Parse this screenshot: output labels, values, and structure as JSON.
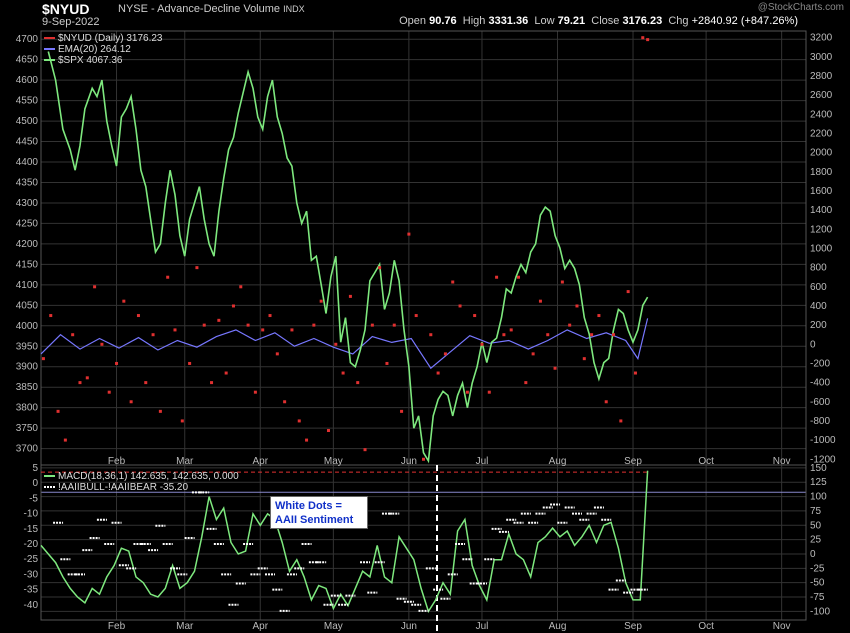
{
  "header": {
    "ticker": "$NYUD",
    "description": "NYSE - Advance-Decline Volume",
    "type": "INDX",
    "date": "9-Sep-2022",
    "open_label": "Open",
    "open": "90.76",
    "high_label": "High",
    "high": "3331.36",
    "low_label": "Low",
    "low": "79.21",
    "close_label": "Close",
    "close": "3176.23",
    "chg_label": "Chg",
    "chg": "+2840.92 (+847.26%)",
    "brand": "@StockCharts.com"
  },
  "colors": {
    "background": "#000000",
    "grid": "#333333",
    "spx": "#7ee87e",
    "ema": "#7777ff",
    "nyud_dots": "#e03030",
    "macd": "#7ee87e",
    "signal": "#e03030",
    "sentiment_dots": "#ffffff",
    "note_text": "#1030c8"
  },
  "note": {
    "line1": "White Dots =",
    "line2": "AAII Sentiment"
  },
  "chart_data": [
    {
      "type": "line",
      "panel": "main",
      "legend": [
        {
          "label": "$NYUD (Daily) 3176.23",
          "color": "#e03030"
        },
        {
          "label": "EMA(20) 264.12",
          "color": "#7777ff"
        },
        {
          "label": "$SPX 4067.36",
          "color": "#7ee87e"
        }
      ],
      "x_ticks": [
        "Feb",
        "Mar",
        "Apr",
        "May",
        "Jun",
        "Jul",
        "Aug",
        "Sep",
        "Oct",
        "Nov"
      ],
      "x_tick_days": [
        31,
        59,
        90,
        120,
        151,
        181,
        212,
        243,
        273,
        304
      ],
      "xlim": [
        0,
        314
      ],
      "left_axis_ticks": [
        3700,
        3750,
        3800,
        3850,
        3900,
        3950,
        4000,
        4050,
        4100,
        4150,
        4200,
        4250,
        4300,
        4350,
        4400,
        4450,
        4500,
        4550,
        4600,
        4650,
        4700
      ],
      "ylim_left": [
        3660,
        4720
      ],
      "right_axis_ticks": [
        -1200,
        -1000,
        -800,
        -600,
        -400,
        -200,
        0,
        200,
        400,
        600,
        800,
        1000,
        1200,
        1400,
        1600,
        1800,
        2000,
        2200,
        2400,
        2600,
        2800,
        3000,
        3200
      ],
      "ylim_right": [
        -1260,
        3270
      ],
      "spx": {
        "name": "$SPX",
        "x": [
          3,
          6,
          9,
          12,
          14,
          16,
          18,
          21,
          23,
          25,
          27,
          29,
          31,
          33,
          35,
          37,
          39,
          41,
          43,
          45,
          47,
          49,
          51,
          53,
          55,
          57,
          59,
          61,
          63,
          65,
          67,
          69,
          71,
          73,
          75,
          77,
          79,
          81,
          83,
          85,
          87,
          89,
          91,
          93,
          95,
          97,
          99,
          101,
          103,
          105,
          107,
          109,
          111,
          113,
          115,
          117,
          119,
          121,
          123,
          125,
          127,
          129,
          131,
          133,
          135,
          137,
          139,
          141,
          143,
          145,
          147,
          149,
          151,
          153,
          155,
          157,
          159,
          161,
          163,
          165,
          167,
          169,
          171,
          173,
          175,
          177,
          179,
          181,
          183,
          185,
          187,
          189,
          191,
          193,
          195,
          197,
          199,
          201,
          203,
          205,
          207,
          209,
          211,
          213,
          215,
          217,
          219,
          221,
          223,
          225,
          227,
          229,
          231,
          233,
          235,
          237,
          239,
          241,
          243,
          245,
          247,
          249
        ],
        "y": [
          4670,
          4600,
          4480,
          4430,
          4380,
          4440,
          4530,
          4580,
          4560,
          4600,
          4500,
          4440,
          4390,
          4510,
          4530,
          4560,
          4480,
          4380,
          4340,
          4260,
          4180,
          4200,
          4300,
          4380,
          4320,
          4220,
          4170,
          4260,
          4300,
          4340,
          4260,
          4200,
          4170,
          4280,
          4360,
          4430,
          4460,
          4520,
          4570,
          4620,
          4580,
          4510,
          4480,
          4560,
          4600,
          4510,
          4470,
          4410,
          4390,
          4300,
          4250,
          4280,
          4160,
          4170,
          4100,
          4030,
          4120,
          4170,
          3960,
          4020,
          3910,
          3900,
          3940,
          3990,
          4110,
          4130,
          4150,
          4040,
          4080,
          4160,
          4110,
          3990,
          3900,
          3750,
          3780,
          3690,
          3670,
          3780,
          3820,
          3840,
          3830,
          3780,
          3830,
          3860,
          3800,
          3860,
          3900,
          3960,
          3910,
          3960,
          3970,
          4020,
          4090,
          4080,
          4120,
          4150,
          4130,
          4180,
          4200,
          4270,
          4290,
          4280,
          4220,
          4190,
          4140,
          4160,
          4140,
          4100,
          4020,
          3980,
          3910,
          3870,
          3910,
          3920,
          3990,
          4040,
          4030,
          3990,
          3960,
          3990,
          4050,
          4070
        ]
      },
      "ema": {
        "name": "EMA(20)",
        "x": [
          0,
          8,
          16,
          24,
          32,
          40,
          48,
          56,
          64,
          72,
          80,
          88,
          96,
          104,
          112,
          120,
          128,
          136,
          144,
          152,
          160,
          168,
          176,
          184,
          192,
          200,
          208,
          216,
          224,
          232,
          240,
          245,
          249
        ],
        "y": [
          -100,
          100,
          -50,
          60,
          -40,
          70,
          -60,
          40,
          -30,
          80,
          150,
          40,
          120,
          -20,
          60,
          -30,
          -100,
          80,
          20,
          60,
          -250,
          -80,
          90,
          10,
          40,
          -50,
          40,
          150,
          60,
          120,
          40,
          -150,
          270
        ]
      },
      "nyud_dots": {
        "name": "$NYUD",
        "x": [
          1,
          4,
          7,
          10,
          13,
          16,
          19,
          22,
          25,
          28,
          31,
          34,
          37,
          40,
          43,
          46,
          49,
          52,
          55,
          58,
          61,
          64,
          67,
          70,
          73,
          76,
          79,
          82,
          85,
          88,
          91,
          94,
          97,
          100,
          103,
          106,
          109,
          112,
          115,
          118,
          121,
          124,
          127,
          130,
          133,
          136,
          139,
          142,
          145,
          148,
          151,
          154,
          157,
          160,
          163,
          166,
          169,
          172,
          175,
          178,
          181,
          184,
          187,
          190,
          193,
          196,
          199,
          202,
          205,
          208,
          211,
          214,
          217,
          220,
          223,
          226,
          229,
          232,
          235,
          238,
          241,
          244,
          247,
          249
        ],
        "y": [
          -150,
          300,
          -700,
          -1000,
          100,
          -400,
          -350,
          600,
          0,
          -500,
          -200,
          450,
          -600,
          300,
          -400,
          100,
          -700,
          700,
          150,
          -800,
          -200,
          800,
          200,
          -400,
          250,
          -300,
          400,
          600,
          200,
          -500,
          150,
          300,
          -100,
          -600,
          150,
          -800,
          -1000,
          200,
          450,
          -900,
          0,
          -300,
          500,
          -400,
          -1100,
          200,
          800,
          -200,
          200,
          -700,
          1150,
          300,
          -1200,
          100,
          -300,
          -100,
          650,
          400,
          -500,
          300,
          0,
          -500,
          700,
          100,
          150,
          700,
          -400,
          -100,
          450,
          100,
          -250,
          650,
          200,
          400,
          -150,
          100,
          300,
          -600,
          100,
          -800,
          550,
          -300,
          3200,
          3180
        ]
      }
    },
    {
      "type": "line",
      "panel": "indicator",
      "legend": [
        {
          "label": "MACD(18,36,1) 142.635, 142.635, 0.000",
          "color": "#7ee87e"
        },
        {
          "label": "!AAIIBULL-!AAIIBEAR -35.20",
          "color": "#ffffff"
        }
      ],
      "left_axis_ticks": [
        -40,
        -35,
        -30,
        -25,
        -20,
        -15,
        -10,
        -5,
        0,
        5
      ],
      "ylim_left": [
        -45,
        6
      ],
      "right_axis_ticks": [
        -100,
        -75,
        -50,
        -25,
        0,
        25,
        50,
        75,
        100,
        125,
        150
      ],
      "ylim_right": [
        -115,
        155
      ],
      "macd": {
        "name": "MACD(18,36,1)",
        "x": [
          0,
          3,
          6,
          9,
          12,
          15,
          18,
          21,
          24,
          27,
          30,
          33,
          36,
          39,
          42,
          45,
          48,
          51,
          54,
          57,
          60,
          63,
          66,
          69,
          72,
          75,
          78,
          81,
          84,
          87,
          90,
          93,
          96,
          99,
          102,
          105,
          108,
          111,
          114,
          117,
          120,
          123,
          126,
          129,
          132,
          135,
          138,
          141,
          144,
          147,
          150,
          153,
          156,
          159,
          162,
          165,
          168,
          171,
          174,
          177,
          180,
          183,
          186,
          189,
          192,
          195,
          198,
          201,
          204,
          207,
          210,
          213,
          216,
          219,
          222,
          225,
          228,
          231,
          234,
          237,
          240,
          243,
          246,
          249
        ],
        "y": [
          15,
          0,
          -15,
          -40,
          -60,
          -75,
          -85,
          -60,
          -70,
          -40,
          -20,
          10,
          5,
          -40,
          -50,
          -70,
          -75,
          -60,
          -20,
          -60,
          -50,
          -30,
          30,
          100,
          60,
          80,
          20,
          0,
          5,
          70,
          50,
          70,
          60,
          20,
          -30,
          -10,
          -40,
          -80,
          -55,
          -60,
          -95,
          -70,
          -90,
          -60,
          -30,
          -40,
          15,
          -40,
          -50,
          30,
          10,
          -10,
          -60,
          -100,
          -80,
          -50,
          -70,
          40,
          60,
          -20,
          -55,
          -80,
          -10,
          -10,
          35,
          0,
          -10,
          -40,
          20,
          30,
          45,
          30,
          40,
          15,
          30,
          50,
          20,
          50,
          55,
          10,
          -50,
          -80,
          -80,
          145
        ]
      },
      "signal": {
        "name": "signal",
        "x": [
          0,
          249
        ],
        "y": [
          142.635,
          142.635
        ]
      },
      "sentiment_dots": {
        "name": "!AAIIBULL-!AAIIBEAR",
        "x": [
          7,
          10,
          13,
          16,
          19,
          22,
          25,
          28,
          31,
          34,
          37,
          40,
          43,
          46,
          49,
          52,
          55,
          58,
          61,
          64,
          67,
          70,
          73,
          76,
          79,
          82,
          85,
          88,
          91,
          94,
          97,
          100,
          103,
          106,
          109,
          112,
          115,
          118,
          121,
          124,
          127,
          130,
          133,
          136,
          139,
          142,
          145,
          148,
          151,
          154,
          157,
          160,
          163,
          166,
          169,
          172,
          175,
          178,
          181,
          184,
          187,
          190,
          193,
          196,
          199,
          202,
          205,
          208,
          211,
          214,
          217,
          220,
          223,
          226,
          229,
          232,
          235,
          238,
          241,
          244,
          247
        ],
        "y": [
          -13,
          -25,
          -30,
          -30,
          -22,
          -18,
          -12,
          -20,
          -13,
          -27,
          -28,
          -20,
          -20,
          -22,
          -14,
          -20,
          -28,
          -30,
          -18,
          -3,
          -3,
          -15,
          -20,
          -30,
          -40,
          -33,
          -20,
          -30,
          -28,
          -30,
          -35,
          -42,
          -30,
          -28,
          -20,
          -26,
          -26,
          -40,
          -37,
          -40,
          -37,
          -13,
          -26,
          -36,
          -26,
          -10,
          -10,
          -38,
          -39,
          -40,
          -42,
          -28,
          -35,
          -38,
          -30,
          -20,
          -25,
          -33,
          -33,
          -25,
          -15,
          -16,
          -12,
          -13,
          -10,
          -13,
          -10,
          -8,
          -7,
          -13,
          -8,
          -10,
          -12,
          -10,
          -8,
          -12,
          -35,
          -32,
          -36,
          -35,
          -35
        ]
      }
    }
  ]
}
